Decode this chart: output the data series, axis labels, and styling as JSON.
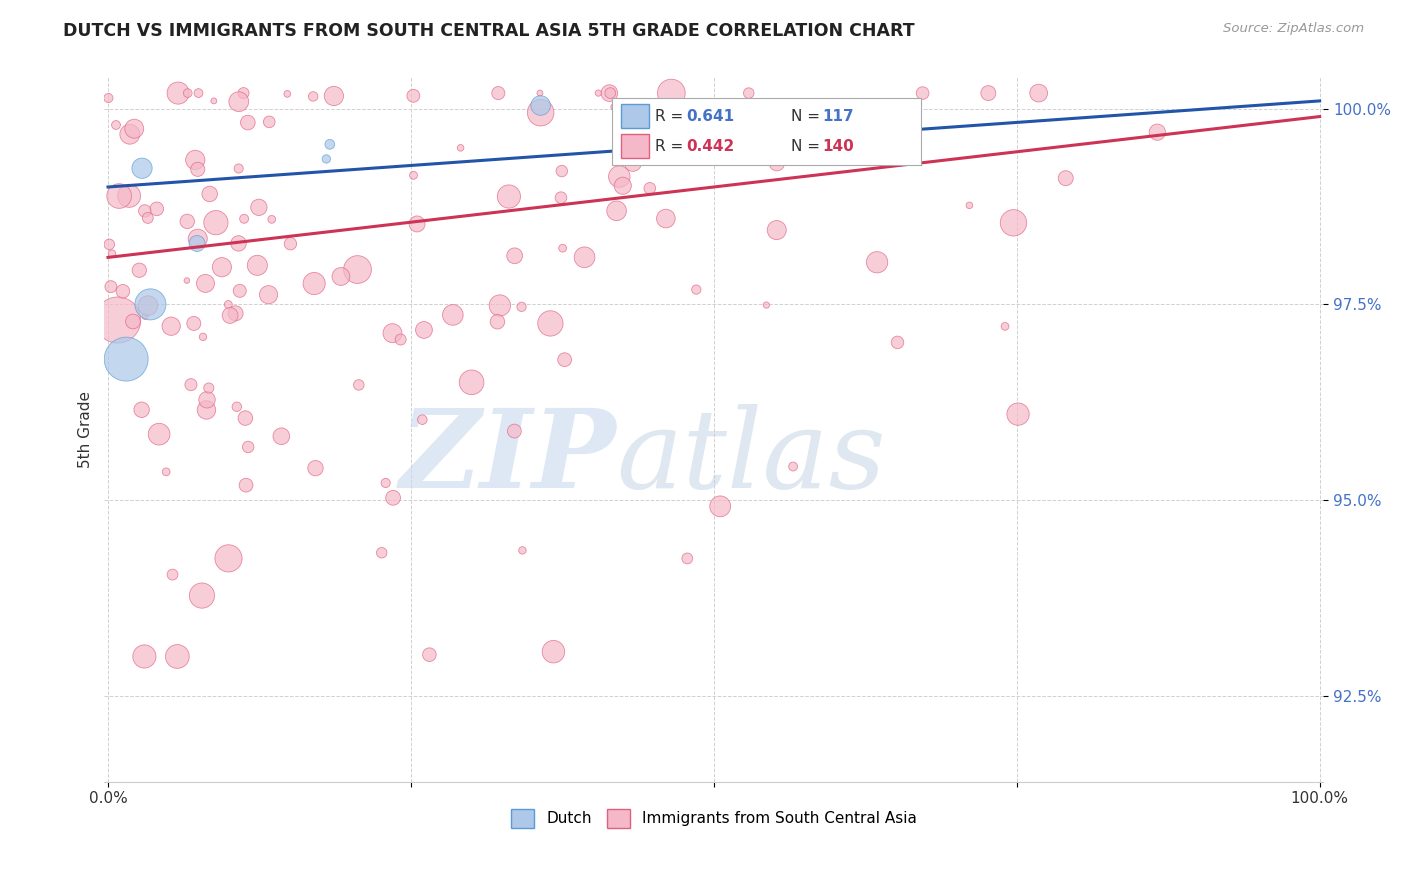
{
  "title": "DUTCH VS IMMIGRANTS FROM SOUTH CENTRAL ASIA 5TH GRADE CORRELATION CHART",
  "source": "Source: ZipAtlas.com",
  "ylabel": "5th Grade",
  "xlim": [
    0.0,
    1.0
  ],
  "ylim": [
    0.914,
    1.004
  ],
  "yticks": [
    0.925,
    0.95,
    0.975,
    1.0
  ],
  "ytick_labels": [
    "92.5%",
    "95.0%",
    "97.5%",
    "100.0%"
  ],
  "legend_r1": "0.641",
  "legend_n1": "117",
  "legend_r2": "0.442",
  "legend_n2": "140",
  "dutch_color": "#adc8e8",
  "dutch_edge_color": "#5b9bd5",
  "immigrant_color": "#f5b8c8",
  "immigrant_edge_color": "#e06080",
  "trendline_dutch_color": "#2255aa",
  "trendline_immigrant_color": "#cc3355",
  "background_color": "#ffffff",
  "title_color": "#222222",
  "source_color": "#999999",
  "label_color": "#4472c4",
  "grid_color": "#cccccc",
  "watermark_zip_color": "#c8d8ee",
  "watermark_atlas_color": "#b8cce0",
  "dutch_n": 117,
  "immigrant_n": 140,
  "trendline_dutch_start_y": 0.99,
  "trendline_dutch_end_y": 1.001,
  "trendline_imm_start_y": 0.981,
  "trendline_imm_end_y": 0.999
}
